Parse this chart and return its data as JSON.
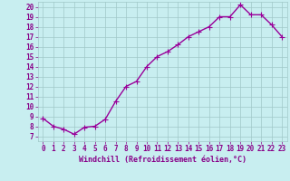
{
  "hours": [
    0,
    1,
    2,
    3,
    4,
    5,
    6,
    7,
    8,
    9,
    10,
    11,
    12,
    13,
    14,
    15,
    16,
    17,
    18,
    19,
    20,
    21,
    22,
    23
  ],
  "values": [
    8.8,
    8.0,
    7.7,
    7.2,
    7.9,
    8.0,
    8.7,
    10.5,
    12.0,
    12.5,
    14.0,
    15.0,
    15.5,
    16.2,
    17.0,
    17.5,
    18.0,
    19.0,
    19.0,
    20.2,
    19.2,
    19.2,
    18.2,
    17.0
  ],
  "xlabel": "Windchill (Refroidissement éolien,°C)",
  "ylim": [
    6.5,
    20.5
  ],
  "xlim": [
    -0.5,
    23.5
  ],
  "line_color": "#990099",
  "marker_color": "#990099",
  "bg_color": "#c8eef0",
  "grid_color": "#a0c8c8",
  "text_color": "#880088",
  "yticks": [
    7,
    8,
    9,
    10,
    11,
    12,
    13,
    14,
    15,
    16,
    17,
    18,
    19,
    20
  ],
  "xticks": [
    0,
    1,
    2,
    3,
    4,
    5,
    6,
    7,
    8,
    9,
    10,
    11,
    12,
    13,
    14,
    15,
    16,
    17,
    18,
    19,
    20,
    21,
    22,
    23
  ],
  "tick_fontsize": 5.5,
  "xlabel_fontsize": 6.0,
  "marker_size": 2.5,
  "line_width": 1.0
}
